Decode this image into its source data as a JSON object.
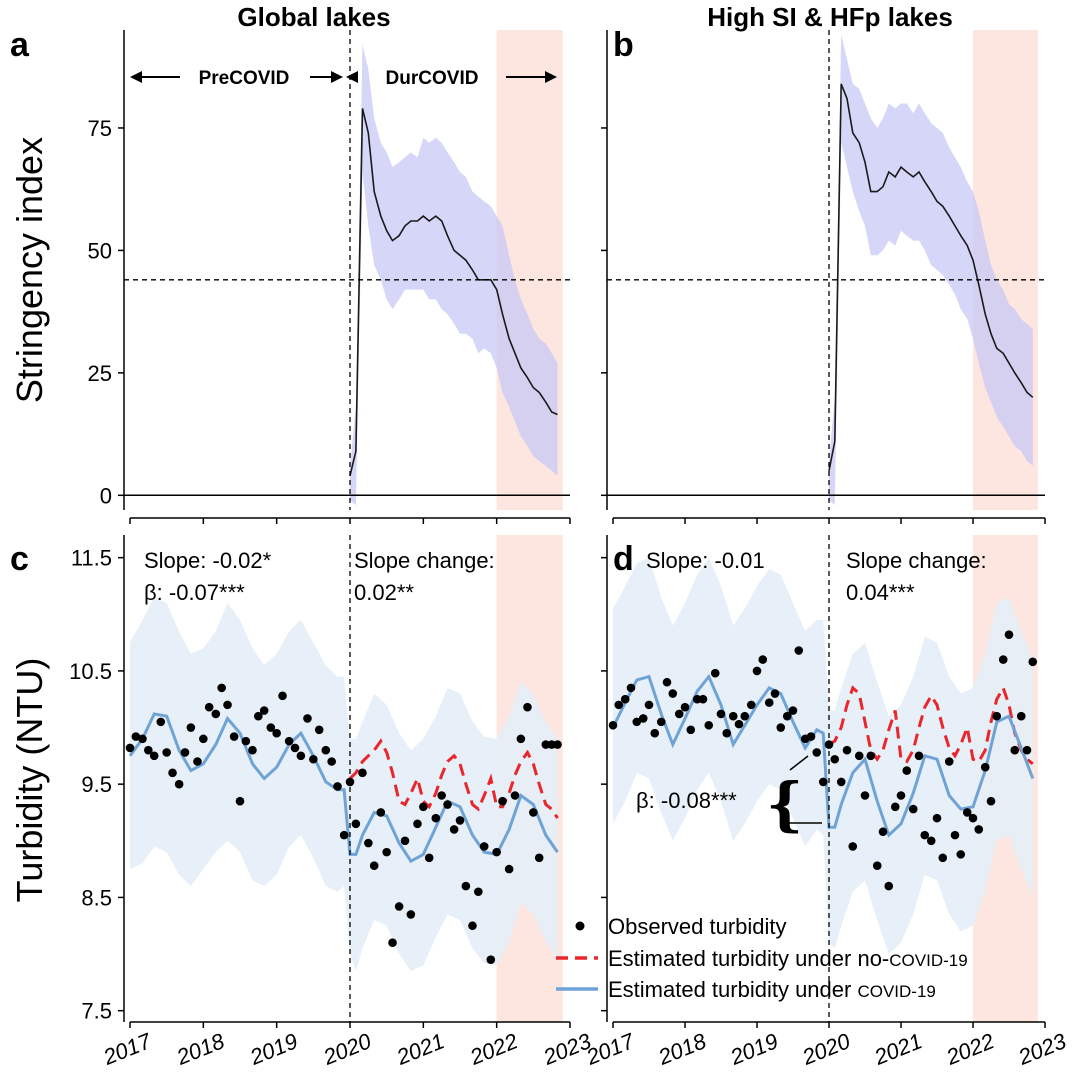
{
  "colors": {
    "band_purple": "#c8c8f5",
    "band_blue": "#e4eef7",
    "highlight": "#fde0db",
    "red": "#e8262b",
    "blue": "#6fa3d6",
    "black": "#000000"
  },
  "titles": {
    "a": "Global lakes",
    "b": "High SI & HFp lakes"
  },
  "labels": {
    "a": "a",
    "b": "b",
    "c": "c",
    "d": "d"
  },
  "y_labels": {
    "top": "Stringency index",
    "bottom": "Turbidity (NTU)"
  },
  "period_labels": {
    "pre": "PreCOVID",
    "dur": "DurCOVID"
  },
  "annotations": {
    "c_slope": "Slope: -0.02*",
    "c_beta": "β: -0.07***",
    "c_change_label": "Slope change:",
    "c_change_value": "0.02**",
    "d_slope": "Slope:  -0.01",
    "d_change_label": "Slope change:",
    "d_change_value": "0.04***",
    "d_beta": "β: -0.08***"
  },
  "legend": {
    "observed": "Observed turbidity",
    "nocovid_prefix": "Estimated turbidity under no-",
    "nocovid_suffix": "COVID-19",
    "covid_prefix": "Estimated turbidity under ",
    "covid_suffix": "COVID-19"
  },
  "chart_data": [
    {
      "panel": "a",
      "type": "line",
      "title": "Global lakes",
      "ylabel": "Stringency index",
      "ylim": [
        -3,
        95
      ],
      "yticks": [
        0,
        25,
        50,
        75
      ],
      "x": [
        2020.0,
        2020.08,
        2020.17,
        2020.25,
        2020.33,
        2020.42,
        2020.5,
        2020.58,
        2020.67,
        2020.75,
        2020.83,
        2020.92,
        2021.0,
        2021.08,
        2021.17,
        2021.25,
        2021.33,
        2021.42,
        2021.5,
        2021.58,
        2021.67,
        2021.75,
        2021.83,
        2021.92,
        2022.0,
        2022.08,
        2022.17,
        2022.25,
        2022.33,
        2022.42,
        2022.5,
        2022.58,
        2022.67,
        2022.75,
        2022.83
      ],
      "mean": [
        4,
        9,
        79,
        74,
        62,
        57,
        54,
        52,
        53,
        55,
        56,
        56,
        57,
        56,
        57,
        56,
        53,
        50,
        49,
        48,
        46,
        44,
        44,
        44,
        42,
        37,
        32,
        29,
        26,
        24,
        22,
        21,
        19,
        17,
        16.5
      ],
      "lower": [
        -1,
        -2,
        66,
        55,
        47,
        44,
        40,
        38,
        40,
        42,
        42,
        42,
        42,
        40,
        40,
        38,
        37,
        35,
        33,
        33,
        32,
        29,
        30,
        29,
        26,
        21,
        18,
        15,
        12,
        10,
        8,
        7,
        6,
        5,
        4
      ],
      "upper": [
        6,
        18,
        92,
        87,
        77,
        72,
        70,
        67,
        68,
        69,
        70,
        69,
        73,
        72,
        73,
        72,
        70,
        68,
        66,
        65,
        62,
        61,
        60,
        59,
        57,
        55,
        49,
        44,
        40,
        37,
        34,
        32,
        31,
        29,
        27
      ],
      "hline": 44,
      "vline": 2020,
      "highlight": [
        2022,
        2022.9
      ]
    },
    {
      "panel": "b",
      "type": "line",
      "title": "High SI & HFp lakes",
      "ylim": [
        -3,
        95
      ],
      "yticks": [
        0,
        25,
        50,
        75
      ],
      "x": [
        2020.0,
        2020.08,
        2020.17,
        2020.25,
        2020.33,
        2020.42,
        2020.5,
        2020.58,
        2020.67,
        2020.75,
        2020.83,
        2020.92,
        2021.0,
        2021.08,
        2021.17,
        2021.25,
        2021.33,
        2021.42,
        2021.5,
        2021.58,
        2021.67,
        2021.75,
        2021.83,
        2021.92,
        2022.0,
        2022.08,
        2022.17,
        2022.25,
        2022.33,
        2022.42,
        2022.5,
        2022.58,
        2022.67,
        2022.75,
        2022.83
      ],
      "mean": [
        5,
        11,
        84,
        81,
        74,
        72,
        68,
        62,
        62,
        63,
        66,
        65,
        67,
        66,
        65,
        66,
        64,
        62,
        60,
        59,
        57,
        55,
        53,
        51,
        48,
        43,
        37,
        33,
        30,
        29,
        27,
        25,
        23,
        21,
        20
      ],
      "lower": [
        -1,
        -2,
        72,
        67,
        62,
        58,
        55,
        49,
        49,
        50,
        52,
        51,
        54,
        53,
        52,
        52,
        50,
        47,
        46,
        45,
        43,
        41,
        38,
        36,
        32,
        27,
        22,
        19,
        16,
        14,
        12,
        10,
        9,
        7,
        6
      ],
      "upper": [
        7,
        20,
        94,
        89,
        84,
        83,
        80,
        77,
        75,
        77,
        80,
        79,
        80,
        80,
        78,
        80,
        78,
        76,
        75,
        74,
        71,
        69,
        67,
        64,
        62,
        58,
        52,
        47,
        44,
        42,
        39,
        38,
        36,
        35,
        34
      ],
      "hline": 44,
      "vline": 2020,
      "highlight": [
        2022,
        2022.9
      ]
    },
    {
      "panel": "c",
      "type": "scatter+line",
      "ylabel": "Turbidity (NTU)",
      "ylim": [
        7.4,
        11.7
      ],
      "yticks": [
        7.5,
        8.5,
        9.5,
        10.5,
        11.5
      ],
      "xticks": [
        2017,
        2018,
        2019,
        2020,
        2021,
        2022,
        2023
      ],
      "observed": {
        "x": [
          2017.0,
          2017.08,
          2017.17,
          2017.25,
          2017.33,
          2017.42,
          2017.5,
          2017.58,
          2017.67,
          2017.75,
          2017.83,
          2017.92,
          2018.0,
          2018.08,
          2018.17,
          2018.25,
          2018.33,
          2018.42,
          2018.5,
          2018.58,
          2018.67,
          2018.75,
          2018.83,
          2018.92,
          2019.0,
          2019.08,
          2019.17,
          2019.25,
          2019.33,
          2019.42,
          2019.5,
          2019.58,
          2019.67,
          2019.75,
          2019.83,
          2019.92,
          2020.0,
          2020.08,
          2020.17,
          2020.25,
          2020.33,
          2020.42,
          2020.5,
          2020.58,
          2020.67,
          2020.75,
          2020.83,
          2020.92,
          2021.0,
          2021.08,
          2021.17,
          2021.25,
          2021.33,
          2021.42,
          2021.5,
          2021.58,
          2021.67,
          2021.75,
          2021.83,
          2021.92,
          2022.0,
          2022.08,
          2022.17,
          2022.25,
          2022.33,
          2022.42,
          2022.5,
          2022.58,
          2022.67,
          2022.75,
          2022.83
        ],
        "y": [
          9.82,
          9.92,
          9.9,
          9.8,
          9.75,
          10.05,
          9.78,
          9.6,
          9.5,
          9.78,
          10.0,
          9.7,
          9.9,
          10.18,
          10.12,
          10.35,
          10.2,
          9.92,
          9.35,
          9.88,
          9.8,
          10.1,
          10.15,
          10.0,
          9.95,
          10.28,
          9.88,
          9.82,
          9.75,
          10.08,
          9.72,
          9.98,
          9.8,
          9.7,
          9.48,
          9.05,
          9.52,
          9.15,
          9.6,
          8.98,
          8.78,
          9.25,
          8.9,
          8.1,
          8.42,
          9.0,
          8.35,
          9.15,
          9.3,
          8.85,
          9.2,
          9.4,
          9.32,
          9.1,
          9.18,
          8.6,
          8.25,
          8.55,
          8.95,
          7.95,
          8.9,
          9.35,
          8.75,
          9.4,
          9.9,
          10.18,
          9.25,
          8.85,
          9.85,
          9.85,
          9.85
        ]
      },
      "no_covid": {
        "x": [
          2020.0,
          2020.08,
          2020.17,
          2020.25,
          2020.33,
          2020.42,
          2020.5,
          2020.58,
          2020.67,
          2020.75,
          2020.83,
          2020.92,
          2021.0,
          2021.08,
          2021.17,
          2021.25,
          2021.33,
          2021.42,
          2021.5,
          2021.58,
          2021.67,
          2021.75,
          2021.83,
          2021.92,
          2022.0,
          2022.08,
          2022.17,
          2022.25,
          2022.33,
          2022.42,
          2022.5,
          2022.58,
          2022.67,
          2022.75,
          2022.83
        ],
        "y": [
          9.55,
          9.6,
          9.7,
          9.75,
          9.8,
          9.88,
          9.78,
          9.6,
          9.35,
          9.32,
          9.42,
          9.55,
          9.35,
          9.3,
          9.42,
          9.58,
          9.7,
          9.75,
          9.68,
          9.5,
          9.32,
          9.28,
          9.4,
          9.55,
          9.3,
          9.3,
          9.42,
          9.58,
          9.7,
          9.78,
          9.68,
          9.5,
          9.32,
          9.28,
          9.2
        ]
      },
      "covid": {
        "x": [
          2017.0,
          2017.17,
          2017.33,
          2017.5,
          2017.67,
          2017.83,
          2018.0,
          2018.17,
          2018.33,
          2018.5,
          2018.67,
          2018.83,
          2019.0,
          2019.17,
          2019.33,
          2019.5,
          2019.67,
          2019.83,
          2019.92,
          2020.0,
          2020.08,
          2020.17,
          2020.33,
          2020.5,
          2020.67,
          2020.83,
          2021.0,
          2021.17,
          2021.33,
          2021.5,
          2021.67,
          2021.83,
          2022.0,
          2022.17,
          2022.33,
          2022.5,
          2022.67,
          2022.83
        ],
        "y": [
          9.75,
          9.9,
          10.12,
          10.1,
          9.8,
          9.62,
          9.68,
          9.85,
          10.08,
          9.95,
          9.68,
          9.55,
          9.65,
          9.85,
          9.95,
          9.75,
          9.52,
          9.45,
          9.45,
          8.88,
          8.88,
          9.05,
          9.25,
          9.22,
          8.98,
          8.82,
          8.88,
          9.12,
          9.35,
          9.3,
          9.05,
          8.9,
          8.88,
          9.1,
          9.4,
          9.32,
          9.05,
          8.9
        ]
      },
      "band_lower": [
        8.75,
        8.8,
        8.95,
        8.9,
        8.7,
        8.6,
        8.75,
        8.9,
        9.0,
        8.9,
        8.65,
        8.6,
        8.7,
        8.95,
        9.05,
        8.85,
        8.6,
        8.55,
        8.6,
        8.0,
        7.85,
        8.05,
        8.3,
        8.25,
        8.0,
        7.85,
        7.9,
        8.15,
        8.35,
        8.3,
        8.05,
        7.92,
        7.9,
        8.1,
        8.45,
        8.35,
        8.1,
        7.95
      ],
      "band_upper": [
        10.75,
        10.95,
        11.15,
        11.1,
        10.85,
        10.65,
        10.7,
        10.85,
        11.1,
        10.95,
        10.7,
        10.55,
        10.65,
        10.85,
        10.95,
        10.75,
        10.55,
        10.45,
        10.45,
        9.9,
        9.9,
        10.05,
        10.3,
        10.2,
        9.95,
        9.8,
        9.9,
        10.1,
        10.35,
        10.3,
        10.05,
        9.92,
        9.9,
        10.1,
        10.4,
        10.3,
        10.05,
        9.9
      ],
      "vline": 2020,
      "highlight": [
        2022,
        2022.9
      ]
    },
    {
      "panel": "d",
      "type": "scatter+line",
      "ylim": [
        7.4,
        11.7
      ],
      "yticks": [
        7.5,
        8.5,
        9.5,
        10.5,
        11.5
      ],
      "xticks": [
        2017,
        2018,
        2019,
        2020,
        2021,
        2022,
        2023
      ],
      "observed": {
        "x": [
          2017.0,
          2017.08,
          2017.17,
          2017.25,
          2017.33,
          2017.42,
          2017.5,
          2017.58,
          2017.67,
          2017.75,
          2017.83,
          2017.92,
          2018.0,
          2018.08,
          2018.17,
          2018.25,
          2018.33,
          2018.42,
          2018.5,
          2018.58,
          2018.67,
          2018.75,
          2018.83,
          2018.92,
          2019.0,
          2019.08,
          2019.17,
          2019.25,
          2019.33,
          2019.42,
          2019.5,
          2019.58,
          2019.67,
          2019.75,
          2019.83,
          2019.92,
          2020.0,
          2020.08,
          2020.17,
          2020.25,
          2020.33,
          2020.42,
          2020.5,
          2020.58,
          2020.67,
          2020.75,
          2020.83,
          2020.92,
          2021.0,
          2021.08,
          2021.17,
          2021.25,
          2021.33,
          2021.42,
          2021.5,
          2021.58,
          2021.67,
          2021.75,
          2021.83,
          2021.92,
          2022.0,
          2022.08,
          2022.17,
          2022.25,
          2022.33,
          2022.42,
          2022.5,
          2022.58,
          2022.67,
          2022.75,
          2022.83
        ],
        "y": [
          10.02,
          10.2,
          10.25,
          10.35,
          10.05,
          10.08,
          10.2,
          9.95,
          10.05,
          10.4,
          10.3,
          10.12,
          10.18,
          9.98,
          10.25,
          10.25,
          10.02,
          10.48,
          10.12,
          9.95,
          10.1,
          10.03,
          10.1,
          10.2,
          10.5,
          10.6,
          10.22,
          10.3,
          10.0,
          10.1,
          10.15,
          10.68,
          9.9,
          9.92,
          9.78,
          9.52,
          9.85,
          9.72,
          9.52,
          9.8,
          8.95,
          9.75,
          9.4,
          9.75,
          8.78,
          9.08,
          8.6,
          9.3,
          9.4,
          9.62,
          9.28,
          9.75,
          9.05,
          9.0,
          9.2,
          8.85,
          9.7,
          9.05,
          8.88,
          9.25,
          9.2,
          9.1,
          9.65,
          9.35,
          10.1,
          10.6,
          10.82,
          9.8,
          10.1,
          9.8,
          10.58
        ]
      },
      "no_covid": {
        "x": [
          2020.0,
          2020.08,
          2020.17,
          2020.25,
          2020.33,
          2020.42,
          2020.5,
          2020.58,
          2020.67,
          2020.75,
          2020.83,
          2020.92,
          2021.0,
          2021.08,
          2021.17,
          2021.25,
          2021.33,
          2021.42,
          2021.5,
          2021.58,
          2021.67,
          2021.75,
          2021.83,
          2021.92,
          2022.0,
          2022.08,
          2022.17,
          2022.25,
          2022.33,
          2022.42,
          2022.5,
          2022.58,
          2022.67,
          2022.75,
          2022.83
        ],
        "y": [
          9.85,
          9.88,
          10.0,
          10.2,
          10.35,
          10.3,
          10.05,
          9.8,
          9.72,
          9.8,
          9.98,
          10.15,
          9.72,
          9.7,
          9.8,
          10.0,
          10.18,
          10.28,
          10.2,
          10.0,
          9.82,
          9.75,
          9.85,
          10.0,
          9.72,
          9.7,
          9.8,
          10.05,
          10.25,
          10.35,
          10.2,
          9.95,
          9.8,
          9.72,
          9.68
        ]
      },
      "covid": {
        "x": [
          2017.0,
          2017.17,
          2017.33,
          2017.5,
          2017.67,
          2017.83,
          2018.0,
          2018.17,
          2018.33,
          2018.5,
          2018.67,
          2018.83,
          2019.0,
          2019.17,
          2019.33,
          2019.5,
          2019.67,
          2019.83,
          2019.92,
          2020.0,
          2020.08,
          2020.17,
          2020.33,
          2020.5,
          2020.67,
          2020.83,
          2021.0,
          2021.17,
          2021.33,
          2021.5,
          2021.67,
          2021.83,
          2022.0,
          2022.17,
          2022.33,
          2022.5,
          2022.67,
          2022.83
        ],
        "y": [
          10.0,
          10.22,
          10.42,
          10.45,
          10.12,
          9.85,
          10.08,
          10.32,
          10.45,
          10.2,
          9.85,
          10.02,
          10.2,
          10.35,
          10.3,
          10.05,
          9.82,
          9.98,
          9.95,
          9.12,
          9.12,
          9.32,
          9.6,
          9.72,
          9.35,
          9.05,
          9.15,
          9.42,
          9.75,
          9.72,
          9.4,
          9.28,
          9.3,
          9.62,
          10.05,
          10.1,
          9.82,
          9.55
        ]
      },
      "band_lower": [
        9.15,
        9.35,
        9.6,
        9.55,
        9.25,
        9.0,
        9.2,
        9.45,
        9.6,
        9.35,
        9.0,
        9.15,
        9.35,
        9.5,
        9.45,
        9.2,
        8.95,
        9.1,
        9.05,
        8.1,
        8.05,
        8.25,
        8.55,
        8.65,
        8.3,
        8.0,
        8.1,
        8.35,
        8.7,
        8.65,
        8.35,
        8.2,
        8.25,
        8.55,
        9.0,
        9.05,
        8.75,
        8.5
      ],
      "band_upper": [
        11.05,
        11.25,
        11.45,
        11.5,
        11.15,
        10.9,
        11.1,
        11.35,
        11.5,
        11.25,
        10.9,
        11.05,
        11.25,
        11.4,
        11.35,
        11.1,
        10.85,
        10.95,
        10.95,
        10.15,
        10.15,
        10.35,
        10.65,
        10.75,
        10.4,
        10.1,
        10.2,
        10.45,
        10.8,
        10.75,
        10.45,
        10.3,
        10.35,
        10.65,
        11.1,
        11.15,
        10.85,
        10.6
      ],
      "vline": 2020,
      "highlight": [
        2022,
        2022.9
      ]
    }
  ]
}
